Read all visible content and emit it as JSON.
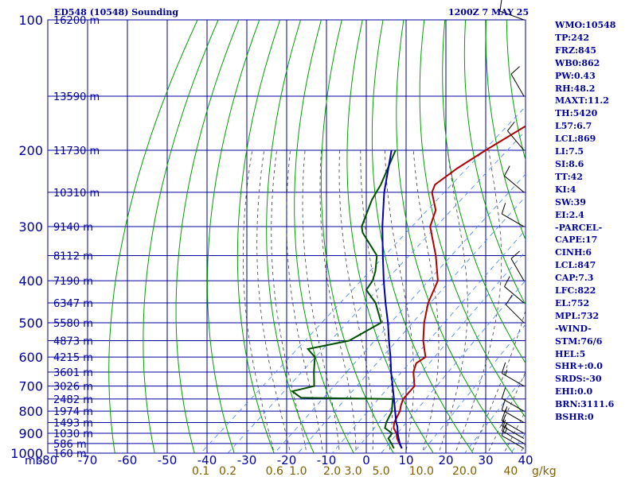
{
  "header": {
    "title": "ED548 (10548) Sounding",
    "time": "1200Z  7 MAY 25"
  },
  "indices": [
    "WMO:10548",
    "TP:242",
    "FRZ:845",
    "WB0:862",
    "PW:0.43",
    "RH:48.2",
    "MAXT:11.2",
    "TH:5420",
    "L57:6.7",
    "LCL:869",
    "LI:7.5",
    "SI:8.6",
    "TT:42",
    "KI:4",
    "SW:39",
    "EI:2.4",
    "-PARCEL-",
    "CAPE:17",
    "CINH:6",
    "LCL:847",
    "CAP:7.3",
    "LFC:822",
    "EL:752",
    "MPL:732",
    "-WIND-",
    "STM:76/6",
    "HEL:5",
    "SHR+:0.0",
    "SRDS:-30",
    "EHI:0.0",
    "BRN:3111.6",
    "BSHR:0"
  ],
  "colors": {
    "frame": "#0000a0",
    "grid": "#0000a0",
    "dry_adiabat": "#00a000",
    "temperature": "#b00000",
    "dewpoint": "#005000",
    "parcel": "#0000b0",
    "moist_adiabat": "#404040",
    "mixing_ratio": "#4080ff",
    "mixing_ratio_label": "#806000",
    "wind_barb": "#000000"
  },
  "chart_data": {
    "type": "skew-t",
    "pressure_axis": {
      "scale": "log",
      "ticks": [
        "100",
        "200",
        "300",
        "400",
        "500",
        "600",
        "700",
        "800",
        "900",
        "1000"
      ],
      "unit_label": "mb"
    },
    "temperature_axis": {
      "ticks": [
        "-80",
        "-70",
        "-60",
        "-50",
        "-40",
        "-30",
        "-20",
        "-10",
        "0",
        "10",
        "20",
        "30",
        "40"
      ],
      "range_bottom": [
        -80,
        40
      ]
    },
    "mixing_ratio_axis": {
      "ticks": [
        "0.1",
        "0.2",
        "0.6",
        "1.0",
        "2.0",
        "3.0",
        "5.0",
        "10.0",
        "20.0",
        "40"
      ],
      "unit_label": "g/kg"
    },
    "heights": [
      {
        "p": 100,
        "label": "16200 m"
      },
      {
        "p": 150,
        "label": "13590 m"
      },
      {
        "p": 200,
        "label": "11730 m"
      },
      {
        "p": 250,
        "label": "10310 m"
      },
      {
        "p": 300,
        "label": "9140 m"
      },
      {
        "p": 350,
        "label": "8112 m"
      },
      {
        "p": 400,
        "label": "7190 m"
      },
      {
        "p": 450,
        "label": "6347 m"
      },
      {
        "p": 500,
        "label": "5580 m"
      },
      {
        "p": 550,
        "label": "4873 m"
      },
      {
        "p": 600,
        "label": "4215 m"
      },
      {
        "p": 650,
        "label": "3601 m"
      },
      {
        "p": 700,
        "label": "3026 m"
      },
      {
        "p": 750,
        "label": "2482 m"
      },
      {
        "p": 800,
        "label": "1974 m"
      },
      {
        "p": 850,
        "label": "1493 m"
      },
      {
        "p": 900,
        "label": "1030 m"
      },
      {
        "p": 950,
        "label": "586 m"
      },
      {
        "p": 1000,
        "label": "160 m"
      }
    ],
    "series": [
      {
        "points": [
          [
            975,
            7.6
          ],
          [
            950,
            5.6
          ],
          [
            925,
            3.6
          ],
          [
            900,
            2.0
          ],
          [
            875,
            -0.2
          ],
          [
            850,
            -1.6
          ],
          [
            800,
            -3.4
          ],
          [
            775,
            -4.8
          ],
          [
            750,
            -6.0
          ],
          [
            700,
            -6.8
          ],
          [
            650,
            -11.0
          ],
          [
            620,
            -12.8
          ],
          [
            600,
            -12.2
          ],
          [
            550,
            -17.4
          ],
          [
            500,
            -22.2
          ],
          [
            450,
            -26.8
          ],
          [
            400,
            -30.6
          ],
          [
            350,
            -38.2
          ],
          [
            300,
            -47.8
          ],
          [
            275,
            -51.0
          ],
          [
            250,
            -57.0
          ],
          [
            240,
            -58.4
          ],
          [
            220,
            -57.4
          ],
          [
            200,
            -55.4
          ],
          [
            175,
            -52.0
          ],
          [
            150,
            -49.2
          ],
          [
            125,
            -49.4
          ],
          [
            110,
            -50.4
          ],
          [
            100,
            -49.8
          ]
        ]
      },
      {
        "points": [
          [
            975,
            5.6
          ],
          [
            950,
            3.6
          ],
          [
            925,
            1.4
          ],
          [
            900,
            0.9
          ],
          [
            875,
            -2.4
          ],
          [
            850,
            -3.6
          ],
          [
            800,
            -5.4
          ],
          [
            775,
            -7.0
          ],
          [
            750,
            -8.6
          ],
          [
            745,
            -32.0
          ],
          [
            720,
            -36.0
          ],
          [
            700,
            -32.0
          ],
          [
            650,
            -36.0
          ],
          [
            600,
            -40.0
          ],
          [
            575,
            -44.0
          ],
          [
            550,
            -36.0
          ],
          [
            500,
            -33.0
          ],
          [
            450,
            -40.0
          ],
          [
            420,
            -46.0
          ],
          [
            400,
            -47.0
          ],
          [
            380,
            -49.0
          ],
          [
            350,
            -53.0
          ],
          [
            310,
            -63.0
          ],
          [
            300,
            -65.0
          ],
          [
            260,
            -70.0
          ],
          [
            240,
            -72.0
          ],
          [
            200,
            -78.0
          ]
        ]
      },
      {
        "points": [
          [
            975,
            7.6
          ],
          [
            950,
            5.7
          ],
          [
            925,
            4.0
          ],
          [
            900,
            2.3
          ],
          [
            869,
            0.4
          ],
          [
            850,
            -1.1
          ],
          [
            800,
            -4.6
          ],
          [
            750,
            -8.3
          ],
          [
            700,
            -12.3
          ],
          [
            650,
            -16.6
          ],
          [
            600,
            -21.0
          ],
          [
            550,
            -26.0
          ],
          [
            500,
            -31.3
          ],
          [
            450,
            -37.5
          ],
          [
            400,
            -44.2
          ],
          [
            350,
            -51.5
          ],
          [
            300,
            -59.8
          ],
          [
            250,
            -69.0
          ],
          [
            200,
            -79.0
          ]
        ]
      }
    ],
    "wind_barbs": [
      {
        "p": 975,
        "dir": 300,
        "kt": 10
      },
      {
        "p": 950,
        "dir": 300,
        "kt": 15
      },
      {
        "p": 925,
        "dir": 300,
        "kt": 15
      },
      {
        "p": 900,
        "dir": 300,
        "kt": 10
      },
      {
        "p": 850,
        "dir": 300,
        "kt": 15
      },
      {
        "p": 800,
        "dir": 300,
        "kt": 10
      },
      {
        "p": 700,
        "dir": 300,
        "kt": 15
      },
      {
        "p": 500,
        "dir": 315,
        "kt": 10
      },
      {
        "p": 450,
        "dir": 310,
        "kt": 10
      },
      {
        "p": 400,
        "dir": 330,
        "kt": 10
      },
      {
        "p": 300,
        "dir": 300,
        "kt": 10
      },
      {
        "p": 250,
        "dir": 310,
        "kt": 10
      },
      {
        "p": 200,
        "dir": 320,
        "kt": 10
      },
      {
        "p": 150,
        "dir": 330,
        "kt": 10
      },
      {
        "p": 100,
        "dir": 290,
        "kt": 10
      }
    ]
  }
}
